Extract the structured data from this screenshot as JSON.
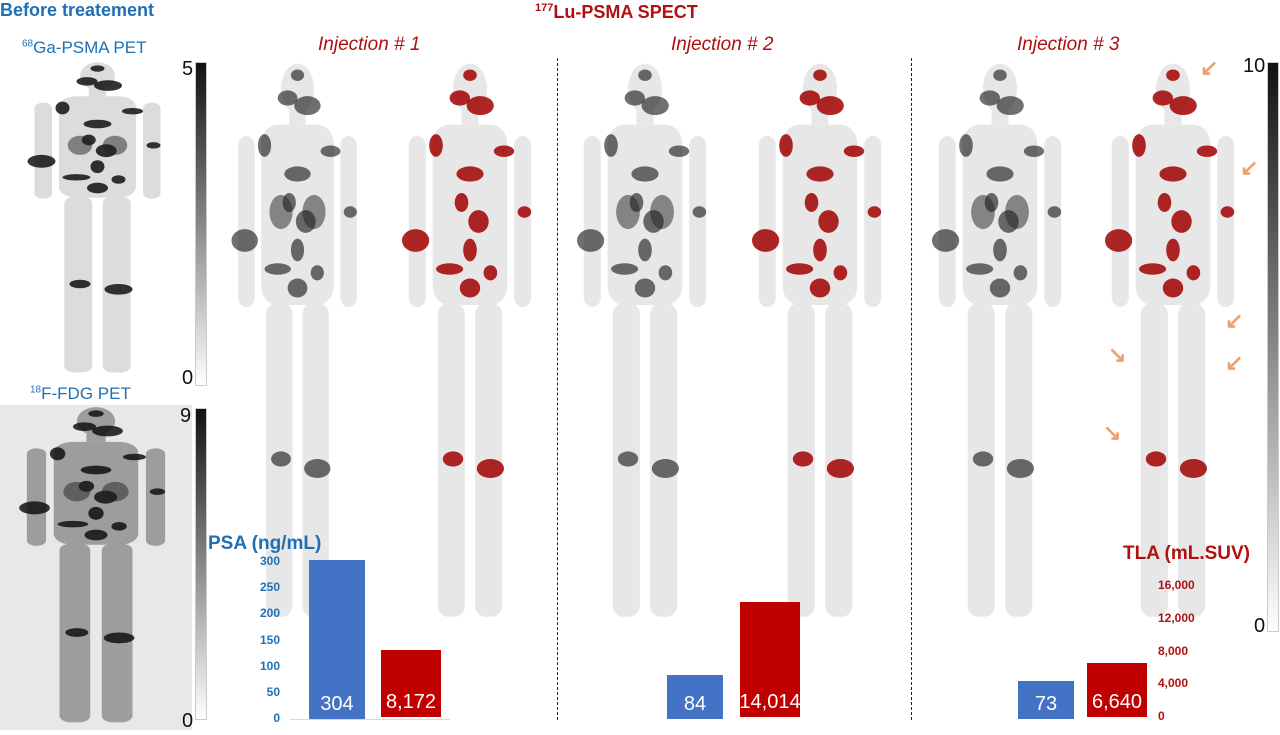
{
  "header": {
    "before": "Before treatement",
    "spect_title_sup": "177",
    "spect_title": "Lu-PSMA SPECT"
  },
  "pet": {
    "psma_sup": "68",
    "psma": "Ga-PSMA PET",
    "psma_max": "5",
    "psma_min": "0",
    "fdg_sup": "18",
    "fdg": "F-FDG PET",
    "fdg_max": "9",
    "fdg_min": "0"
  },
  "injections": [
    "Injection # 1",
    "Injection # 2",
    "Injection # 3"
  ],
  "spect_scale": {
    "max": "10",
    "min": "0"
  },
  "colors": {
    "psa": "#4472c4",
    "tla": "#c00000",
    "arrow": "#f0a070"
  },
  "chart_data": {
    "type": "bar",
    "categories": [
      "Injection # 1",
      "Injection # 2",
      "Injection # 3"
    ],
    "series": [
      {
        "name": "PSA (ng/mL)",
        "values": [
          304,
          84,
          73
        ],
        "labels": [
          "304",
          "84",
          "73"
        ],
        "axis": "left"
      },
      {
        "name": "TLA (mL.SUV)",
        "values": [
          8172,
          14014,
          6640
        ],
        "labels": [
          "8,172",
          "14,014",
          "6,640"
        ],
        "axis": "right"
      }
    ],
    "left_axis": {
      "label": "PSA (ng/mL)",
      "range": [
        0,
        300
      ],
      "ticks": [
        "0",
        "50",
        "100",
        "150",
        "200",
        "250",
        "300"
      ]
    },
    "right_axis": {
      "label": "TLA (mL.SUV)",
      "range": [
        0,
        16000
      ],
      "ticks": [
        "0",
        "4,000",
        "8,000",
        "12,000",
        "16,000"
      ]
    }
  }
}
